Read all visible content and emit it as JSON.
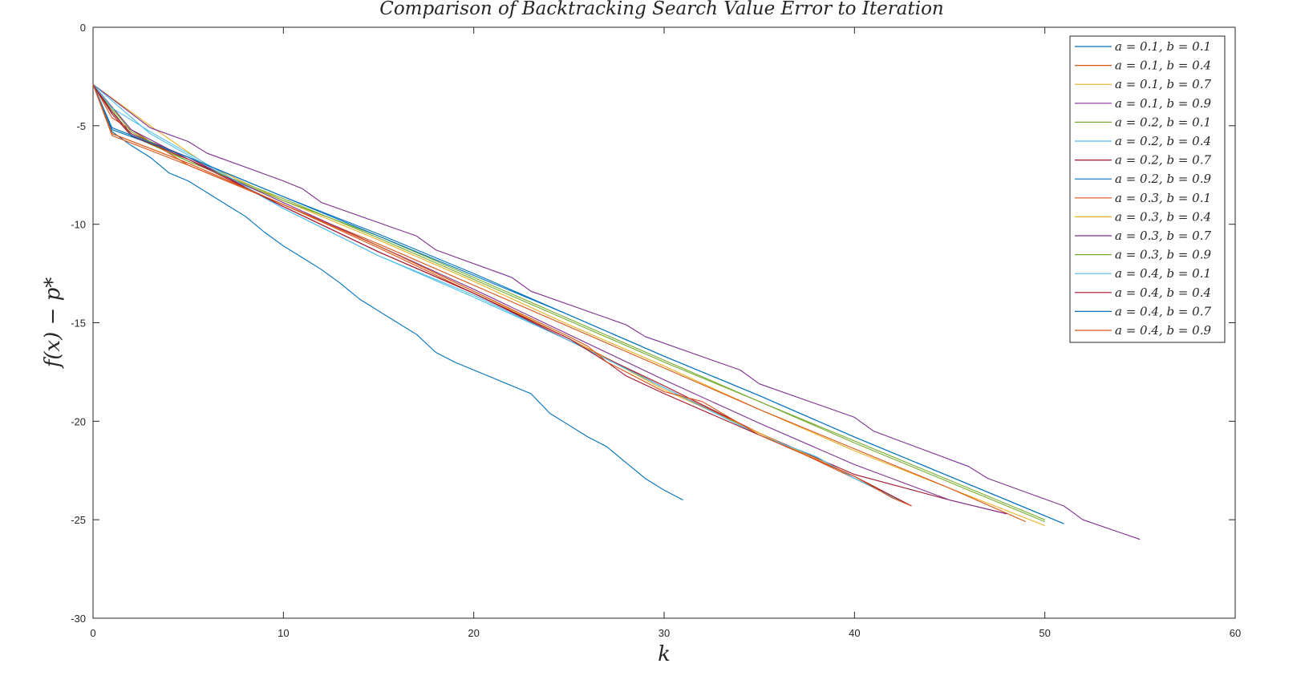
{
  "chart_data": {
    "type": "line",
    "title": "Comparison of Backtracking Search Value Error to Iteration",
    "xlabel": "k",
    "ylabel": "f(x) − p*",
    "xlim": [
      0,
      60
    ],
    "ylim": [
      -30,
      0
    ],
    "xticks": [
      0,
      10,
      20,
      30,
      40,
      50,
      60
    ],
    "yticks": [
      0,
      -5,
      -10,
      -15,
      -20,
      -25,
      -30
    ],
    "grid": false,
    "legend_position": "top-right",
    "series": [
      {
        "name": "a = 0.1,  b = 0.1",
        "color": "#0072BD",
        "x": [
          0,
          1,
          2,
          3,
          4,
          5,
          6,
          7,
          8,
          9,
          10,
          11,
          12,
          13,
          14,
          15,
          16,
          17,
          18,
          19,
          20,
          21,
          22,
          23,
          24,
          25,
          26,
          27,
          28,
          29,
          30,
          31
        ],
        "y": [
          -2.9,
          -5.3,
          -6.0,
          -6.6,
          -7.4,
          -7.8,
          -8.4,
          -9.0,
          -9.6,
          -10.4,
          -11.1,
          -11.7,
          -12.3,
          -13.0,
          -13.8,
          -14.4,
          -15.0,
          -15.6,
          -16.5,
          -17.0,
          -17.4,
          -17.8,
          -18.2,
          -18.6,
          -19.6,
          -20.2,
          -20.8,
          -21.3,
          -22.1,
          -22.9,
          -23.5,
          -24.0
        ]
      },
      {
        "name": "a = 0.1,  b = 0.4",
        "color": "#D95319",
        "x": [
          0,
          1,
          5,
          10,
          15,
          20,
          25,
          30,
          35,
          40,
          43
        ],
        "y": [
          -2.9,
          -5.5,
          -7.0,
          -9.0,
          -11.2,
          -13.5,
          -15.8,
          -18.3,
          -20.6,
          -22.9,
          -24.3
        ]
      },
      {
        "name": "a = 0.1, b = 0.7",
        "color": "#EDB120",
        "x": [
          0,
          3,
          6,
          10,
          15,
          20,
          25,
          30,
          35,
          40,
          45,
          50
        ],
        "y": [
          -2.9,
          -5.0,
          -7.0,
          -8.8,
          -10.8,
          -12.9,
          -15.1,
          -17.2,
          -19.4,
          -21.5,
          -23.4,
          -25.3
        ]
      },
      {
        "name": "a = 0.1, b = 0.9",
        "color": "#7E2F8E",
        "x": [
          0,
          3,
          5,
          6,
          10,
          11,
          12,
          17,
          18,
          22,
          23,
          28,
          29,
          34,
          35,
          40,
          41,
          46,
          47,
          51,
          52,
          55
        ],
        "y": [
          -2.9,
          -5.1,
          -5.8,
          -6.4,
          -7.8,
          -8.2,
          -8.9,
          -10.6,
          -11.3,
          -12.7,
          -13.4,
          -15.1,
          -15.7,
          -17.4,
          -18.1,
          -19.8,
          -20.5,
          -22.3,
          -22.9,
          -24.3,
          -25.0,
          -26.0
        ]
      },
      {
        "name": "a = 0.2, b = 0.1",
        "color": "#77AC30",
        "x": [
          0,
          2,
          5,
          10,
          15,
          20,
          25,
          30,
          35,
          40,
          45,
          50
        ],
        "y": [
          -2.9,
          -5.5,
          -6.8,
          -8.8,
          -10.6,
          -12.7,
          -14.8,
          -16.9,
          -19.0,
          -21.0,
          -23.0,
          -25.0
        ]
      },
      {
        "name": "a = 0.2, b = 0.4",
        "color": "#4DBEEE",
        "x": [
          0,
          3,
          5,
          10,
          15,
          20,
          25,
          30,
          35,
          38,
          40,
          43
        ],
        "y": [
          -2.9,
          -5.4,
          -6.5,
          -9.2,
          -11.6,
          -13.6,
          -15.9,
          -18.3,
          -20.7,
          -21.8,
          -22.9,
          -24.3
        ]
      },
      {
        "name": "a = 0.2, b = 0.7",
        "color": "#A2142F",
        "x": [
          0,
          1,
          2,
          5,
          10,
          15,
          20,
          25,
          30,
          35,
          40,
          45,
          48
        ],
        "y": [
          -2.9,
          -4.3,
          -5.4,
          -6.6,
          -9.1,
          -11.4,
          -13.5,
          -15.9,
          -18.2,
          -20.6,
          -22.7,
          -24.0,
          -24.7
        ]
      },
      {
        "name": "a = 0.2, b = 0.9",
        "color": "#0072BD",
        "x": [
          0,
          1,
          5,
          10,
          15,
          20,
          25,
          30,
          35,
          40,
          45,
          51
        ],
        "y": [
          -2.9,
          -5.2,
          -6.6,
          -8.6,
          -10.5,
          -12.5,
          -14.6,
          -16.7,
          -18.7,
          -20.8,
          -22.8,
          -25.2
        ]
      },
      {
        "name": "a = 0.3, b = 0.1",
        "color": "#D95319",
        "x": [
          0,
          1,
          5,
          10,
          15,
          20,
          25,
          30,
          35,
          40,
          45,
          49
        ],
        "y": [
          -2.9,
          -4.6,
          -7.0,
          -9.0,
          -11.0,
          -13.1,
          -15.2,
          -17.3,
          -19.4,
          -21.4,
          -23.4,
          -25.1
        ]
      },
      {
        "name": "a = 0.3, b = 0.4",
        "color": "#EDB120",
        "x": [
          0,
          1,
          5,
          10,
          15,
          20,
          25,
          30,
          35,
          40,
          43
        ],
        "y": [
          -2.9,
          -5.4,
          -6.9,
          -9.0,
          -11.1,
          -13.4,
          -15.8,
          -18.4,
          -20.6,
          -22.8,
          -24.3
        ]
      },
      {
        "name": "a = 0.3, b = 0.7",
        "color": "#7E2F8E",
        "x": [
          0,
          2,
          5,
          10,
          15,
          20,
          25,
          30,
          35,
          40,
          45,
          48
        ],
        "y": [
          -2.9,
          -5.2,
          -6.7,
          -8.9,
          -11.1,
          -13.3,
          -15.6,
          -17.9,
          -20.1,
          -22.2,
          -24.0,
          -24.7
        ]
      },
      {
        "name": "a = 0.3, b = 0.9",
        "color": "#77AC30",
        "x": [
          0,
          2,
          5,
          10,
          15,
          20,
          25,
          30,
          35,
          40,
          45,
          50
        ],
        "y": [
          -2.9,
          -5.3,
          -6.8,
          -8.7,
          -10.7,
          -12.8,
          -14.9,
          -17.0,
          -19.0,
          -21.1,
          -23.1,
          -25.1
        ]
      },
      {
        "name": "a = 0.4, b = 0.1",
        "color": "#4DBEEE",
        "x": [
          0,
          1,
          3,
          5,
          10,
          15,
          20,
          25,
          30,
          35,
          38,
          40,
          43
        ],
        "y": [
          -2.9,
          -4.1,
          -5.3,
          -6.4,
          -9.2,
          -11.6,
          -13.7,
          -15.9,
          -18.3,
          -20.7,
          -21.8,
          -22.9,
          -24.3
        ]
      },
      {
        "name": "a = 0.4, b = 0.4",
        "color": "#A2142F",
        "x": [
          0,
          1,
          2,
          5,
          10,
          15,
          20,
          25,
          26,
          27,
          28,
          30,
          35,
          40,
          42,
          43
        ],
        "y": [
          -2.9,
          -4.4,
          -5.5,
          -6.7,
          -9.1,
          -11.4,
          -13.5,
          -15.8,
          -16.4,
          -17.0,
          -17.7,
          -18.6,
          -20.7,
          -22.8,
          -23.8,
          -24.3
        ]
      },
      {
        "name": "a = 0.4, b = 0.7",
        "color": "#0072BD",
        "x": [
          0,
          1,
          5,
          10,
          15,
          20,
          25,
          30,
          35,
          40,
          45,
          51
        ],
        "y": [
          -2.9,
          -5.1,
          -6.6,
          -8.6,
          -10.6,
          -12.6,
          -14.6,
          -16.7,
          -18.7,
          -20.8,
          -22.8,
          -25.2
        ]
      },
      {
        "name": "a = 0.4, b = 0.9",
        "color": "#D95319",
        "x": [
          0,
          1,
          5,
          10,
          15,
          20,
          25,
          26,
          27,
          30,
          32,
          35,
          40,
          42,
          43
        ],
        "y": [
          -2.9,
          -5.4,
          -6.9,
          -9.0,
          -11.1,
          -13.4,
          -15.7,
          -16.2,
          -17.0,
          -18.5,
          -19.0,
          -20.7,
          -22.8,
          -23.9,
          -24.3
        ]
      }
    ]
  }
}
